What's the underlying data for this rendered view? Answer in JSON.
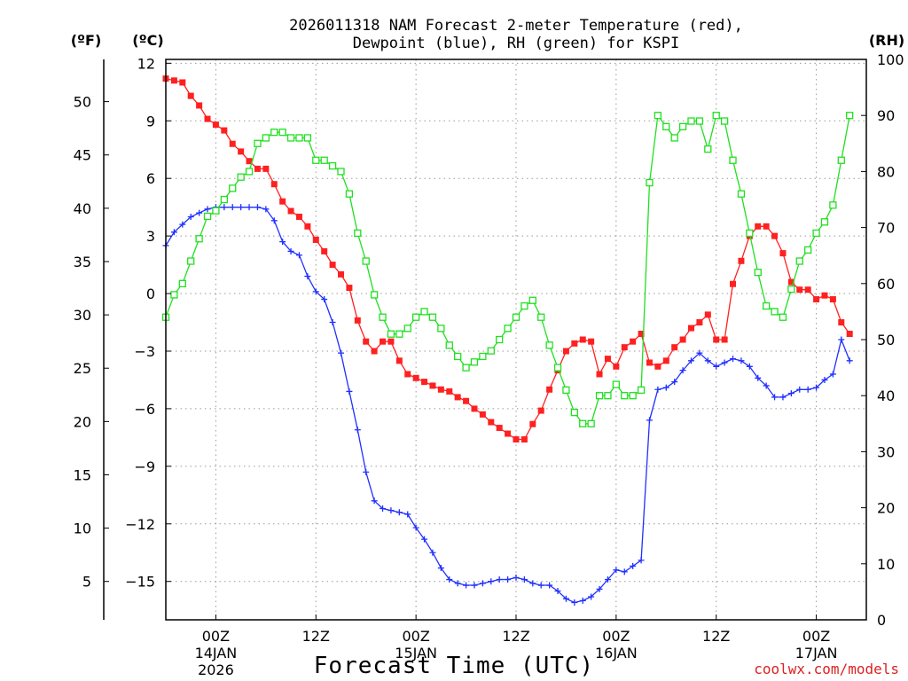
{
  "chart_data": {
    "type": "line",
    "title_line1": "2026011318 NAM Forecast 2-meter Temperature (red),",
    "title_line2": "Dewpoint (blue), RH (green) for KSPI",
    "xlabel": "Forecast Time (UTC)",
    "credit": "coolwx.com/models",
    "x_unit": "hours since 2026-01-13 18Z",
    "x_range": [
      0,
      84
    ],
    "left_axis_c": {
      "label": "(ºC)",
      "range": [
        -17,
        12.2
      ],
      "ticks": [
        12,
        9,
        6,
        3,
        0,
        -3,
        -6,
        -9,
        -12,
        -15
      ]
    },
    "left_axis_f": {
      "label": "(ºF)",
      "ticks": [
        50,
        45,
        40,
        35,
        30,
        25,
        20,
        15,
        10,
        5
      ]
    },
    "right_axis": {
      "label": "(RH)",
      "range": [
        0,
        100
      ],
      "ticks": [
        100,
        90,
        80,
        70,
        60,
        50,
        40,
        30,
        20,
        10,
        0
      ]
    },
    "x_ticks": [
      {
        "hour": 6,
        "line1": "00Z",
        "line2": "14JAN",
        "line3": "2026"
      },
      {
        "hour": 18,
        "line1": "12Z",
        "line2": "",
        "line3": ""
      },
      {
        "hour": 30,
        "line1": "00Z",
        "line2": "15JAN",
        "line3": ""
      },
      {
        "hour": 42,
        "line1": "12Z",
        "line2": "",
        "line3": ""
      },
      {
        "hour": 54,
        "line1": "00Z",
        "line2": "16JAN",
        "line3": ""
      },
      {
        "hour": 66,
        "line1": "12Z",
        "line2": "",
        "line3": ""
      },
      {
        "hour": 78,
        "line1": "00Z",
        "line2": "17JAN",
        "line3": ""
      }
    ],
    "series": [
      {
        "name": "Temperature",
        "unit": "C",
        "axis": "left",
        "color": "#ff2020",
        "marker": "filled-square",
        "values": [
          11.2,
          11.1,
          11.0,
          10.3,
          9.8,
          9.1,
          8.8,
          8.5,
          7.8,
          7.4,
          6.9,
          6.5,
          6.5,
          5.7,
          4.8,
          4.3,
          4.0,
          3.5,
          2.8,
          2.2,
          1.5,
          1.0,
          0.3,
          -1.4,
          -2.5,
          -3.0,
          -2.5,
          -2.5,
          -3.5,
          -4.2,
          -4.4,
          -4.6,
          -4.8,
          -5.0,
          -5.1,
          -5.4,
          -5.6,
          -6.0,
          -6.3,
          -6.7,
          -7.0,
          -7.3,
          -7.6,
          -7.6,
          -6.8,
          -6.1,
          -5.0,
          -4.0,
          -3.0,
          -2.6,
          -2.4,
          -2.5,
          -4.2,
          -3.4,
          -3.8,
          -2.8,
          -2.5,
          -2.1,
          -3.6,
          -3.8,
          -3.5,
          -2.8,
          -2.4,
          -1.8,
          -1.5,
          -1.1,
          -2.4,
          -2.4,
          0.5,
          1.7,
          3.0,
          3.5,
          3.5,
          3.0,
          2.1,
          0.6,
          0.2,
          0.2,
          -0.3,
          -0.1,
          -0.3,
          -1.5,
          -2.1
        ]
      },
      {
        "name": "Dewpoint",
        "unit": "C",
        "axis": "left",
        "color": "#2030ff",
        "marker": "plus",
        "values": [
          2.5,
          3.2,
          3.6,
          4.0,
          4.2,
          4.4,
          4.5,
          4.5,
          4.5,
          4.5,
          4.5,
          4.5,
          4.4,
          3.8,
          2.7,
          2.2,
          2.0,
          0.9,
          0.1,
          -0.3,
          -1.5,
          -3.1,
          -5.1,
          -7.1,
          -9.3,
          -10.8,
          -11.2,
          -11.3,
          -11.4,
          -11.5,
          -12.2,
          -12.8,
          -13.5,
          -14.3,
          -14.9,
          -15.1,
          -15.2,
          -15.2,
          -15.1,
          -15.0,
          -14.9,
          -14.9,
          -14.8,
          -14.9,
          -15.1,
          -15.2,
          -15.2,
          -15.5,
          -15.9,
          -16.1,
          -16.0,
          -15.8,
          -15.4,
          -14.9,
          -14.4,
          -14.5,
          -14.2,
          -13.9,
          -6.6,
          -5.0,
          -4.9,
          -4.6,
          -4.0,
          -3.5,
          -3.1,
          -3.5,
          -3.8,
          -3.6,
          -3.4,
          -3.5,
          -3.8,
          -4.4,
          -4.8,
          -5.4,
          -5.4,
          -5.2,
          -5.0,
          -5.0,
          -4.9,
          -4.5,
          -4.2,
          -2.4,
          -3.5
        ]
      },
      {
        "name": "RH",
        "unit": "%",
        "axis": "right",
        "color": "#20e020",
        "marker": "open-square",
        "values": [
          54,
          58,
          60,
          64,
          68,
          72,
          73,
          75,
          77,
          79,
          80,
          85,
          86,
          87,
          87,
          86,
          86,
          86,
          82,
          82,
          81,
          80,
          76,
          69,
          64,
          58,
          54,
          51,
          51,
          52,
          54,
          55,
          54,
          52,
          49,
          47,
          45,
          46,
          47,
          48,
          50,
          52,
          54,
          56,
          57,
          54,
          49,
          45,
          41,
          37,
          35,
          35,
          40,
          40,
          42,
          40,
          40,
          41,
          78,
          90,
          88,
          86,
          88,
          89,
          89,
          84,
          90,
          89,
          82,
          76,
          69,
          62,
          56,
          55,
          54,
          59,
          64,
          66,
          69,
          71,
          74,
          82,
          90
        ]
      }
    ]
  }
}
